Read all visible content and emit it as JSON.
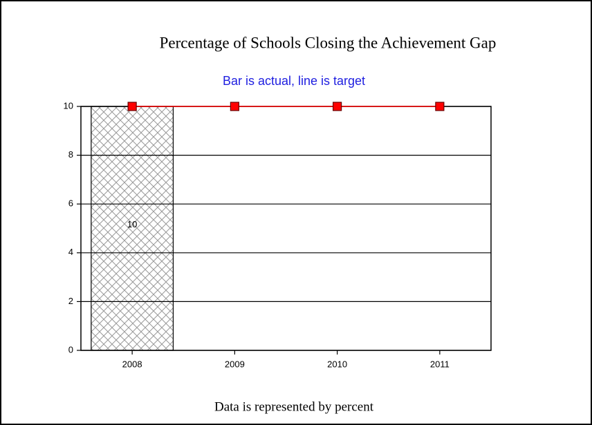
{
  "chart_data": {
    "type": "bar",
    "title": "Percentage of Schools Closing the Achievement Gap",
    "subtitle": "Bar is actual, line is target",
    "footer": "Data is represented by percent",
    "categories": [
      "2008",
      "2009",
      "2010",
      "2011"
    ],
    "series": [
      {
        "type": "bar",
        "color": "#999999",
        "values": [
          10,
          null,
          null,
          null
        ]
      },
      {
        "type": "line",
        "color": "#ff0000",
        "values": [
          10,
          10,
          10,
          10
        ]
      }
    ],
    "ylim": [
      0,
      10
    ],
    "yticks": [
      0,
      2,
      4,
      6,
      8,
      10
    ],
    "grid": true
  }
}
